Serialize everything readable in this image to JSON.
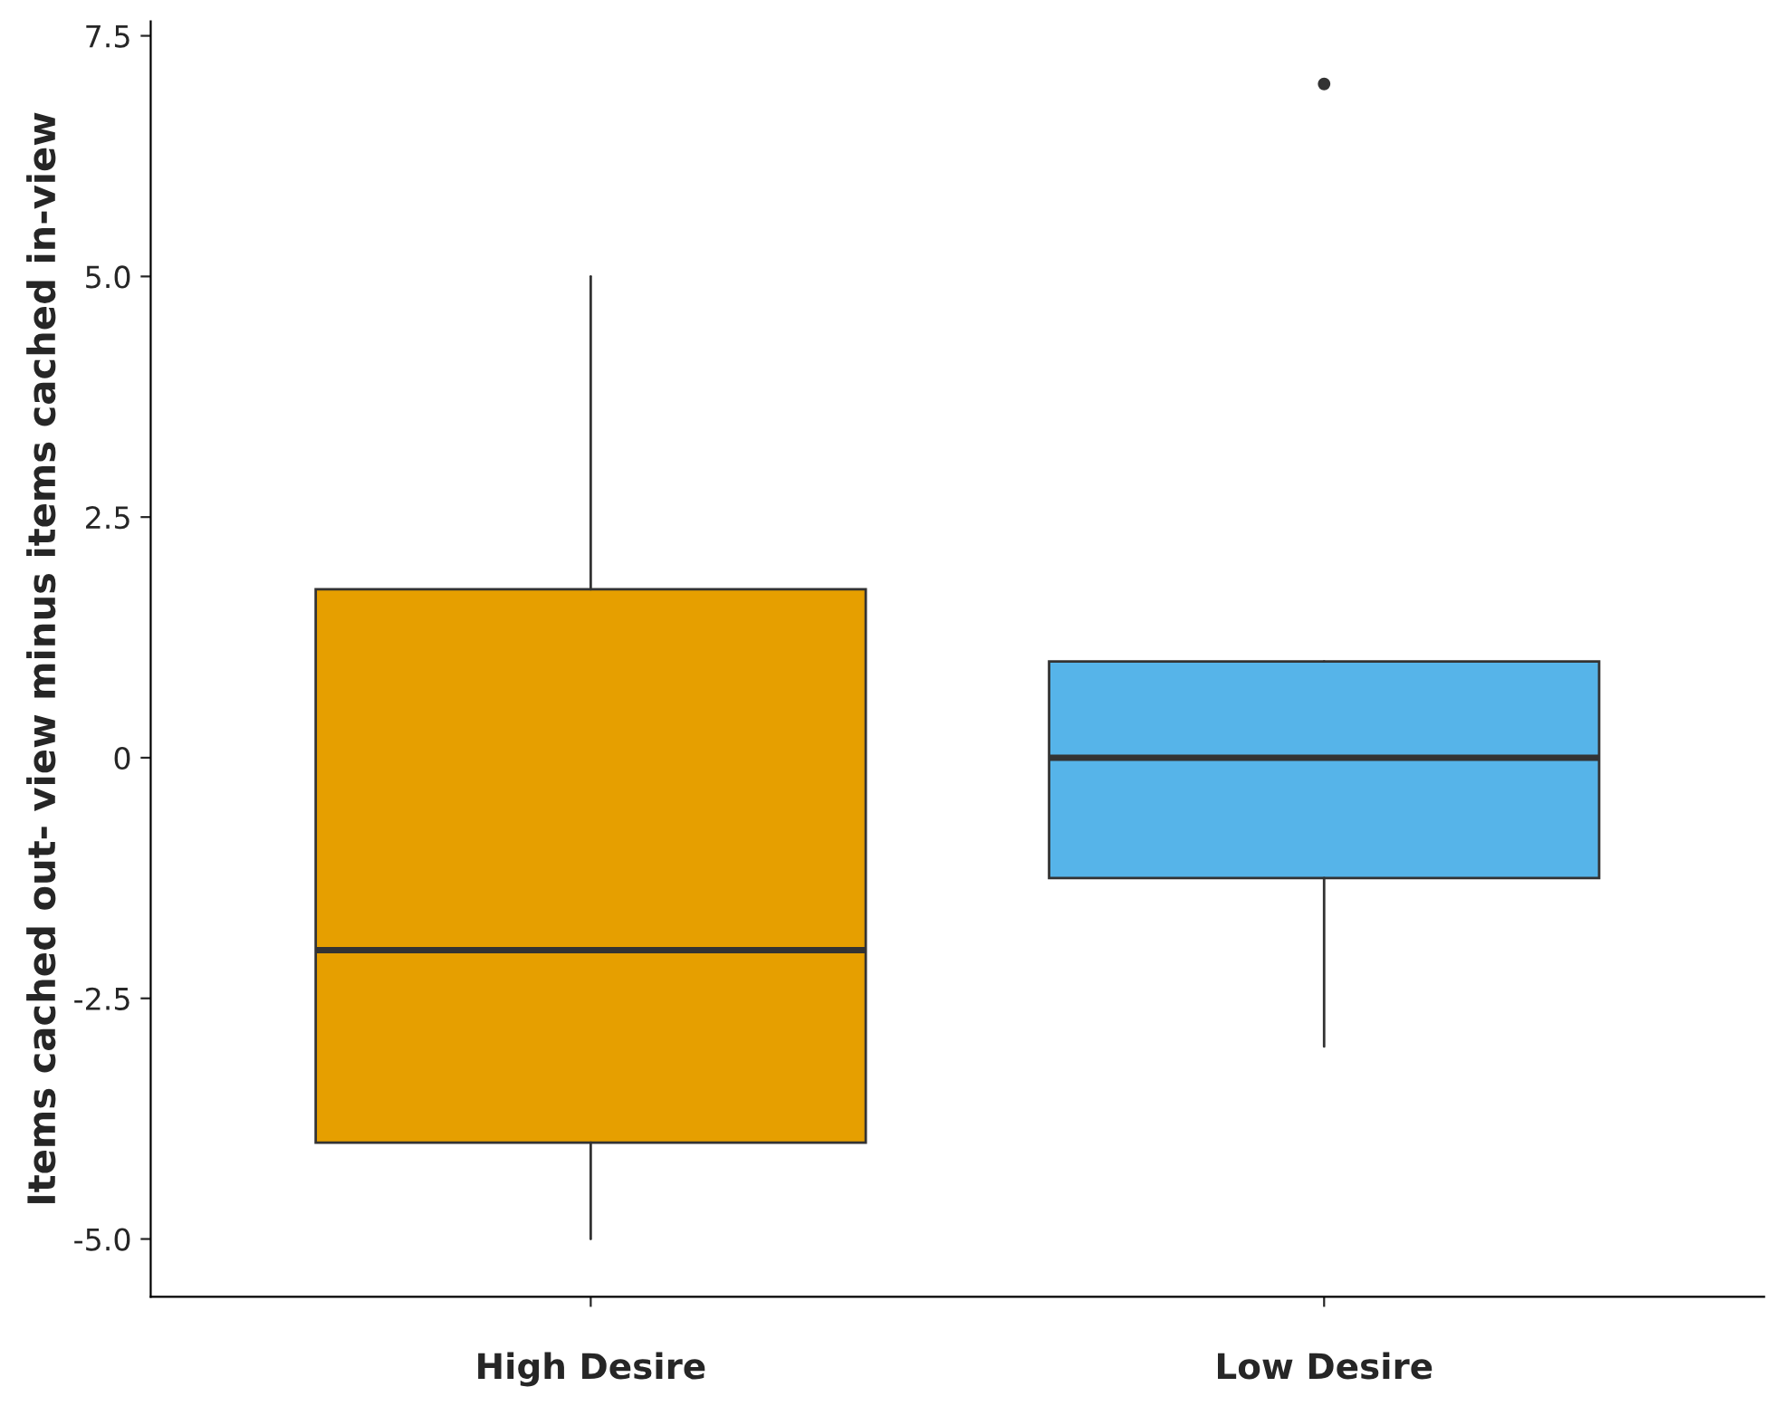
{
  "chart_data": {
    "type": "box",
    "ylabel": "Items cached out- view minus items cached in-view",
    "categories": [
      "High Desire",
      "Low Desire"
    ],
    "colors": [
      "#e69f00",
      "#56b4e9"
    ],
    "boxes": [
      {
        "low": -5,
        "q1": -4,
        "median": -2,
        "q3": 1.75,
        "high": 5
      },
      {
        "low": -3,
        "q1": -1.25,
        "median": 0,
        "q3": 1,
        "high": 1,
        "outliers": [
          7
        ]
      }
    ],
    "ylim": [
      -5.6,
      7.65
    ],
    "yticks": [
      {
        "value": -5,
        "label": "-5.0"
      },
      {
        "value": -2.5,
        "label": "-2.5"
      },
      0,
      2.5,
      {
        "value": 5,
        "label": "5.0"
      },
      7.5
    ],
    "grid": false
  }
}
